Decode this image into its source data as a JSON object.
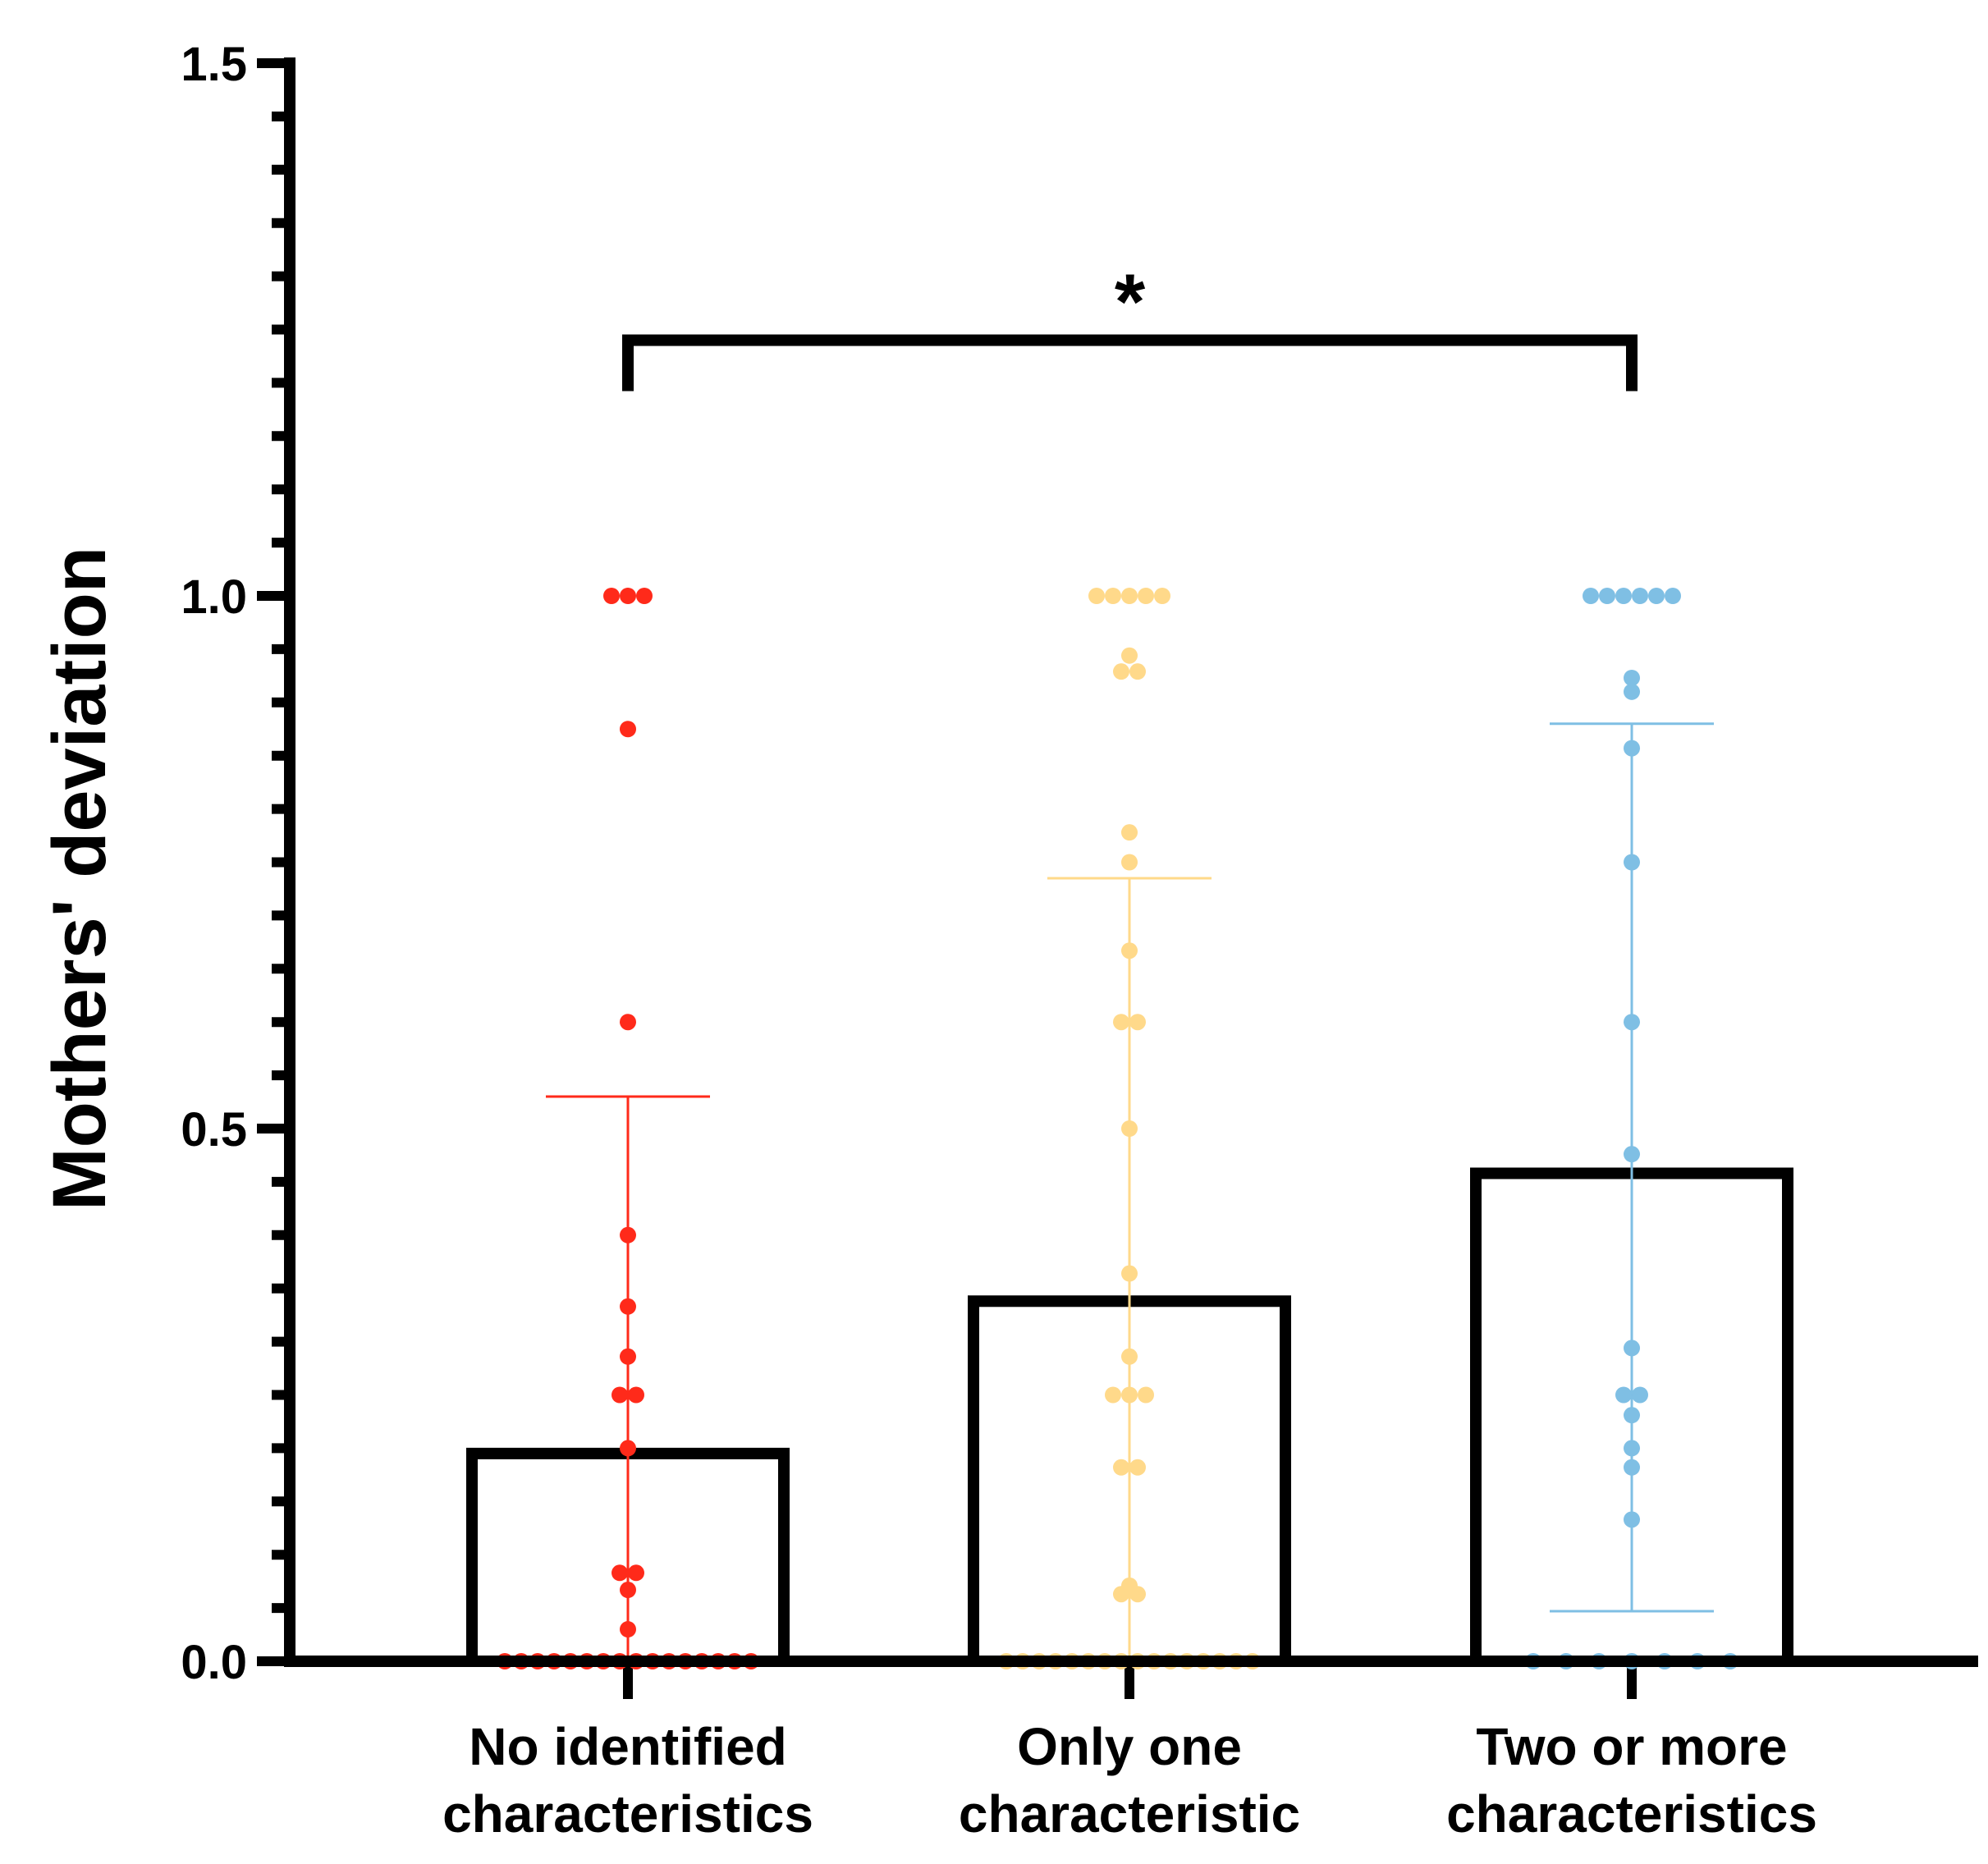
{
  "chart_data": {
    "type": "bar",
    "title": "",
    "xlabel": "",
    "ylabel": "Mothers' deviation",
    "ylim": [
      0,
      1.5
    ],
    "yticks": [
      {
        "value": 0.0,
        "label": "0.0"
      },
      {
        "value": 0.5,
        "label": "0.5"
      },
      {
        "value": 1.0,
        "label": "1.0"
      },
      {
        "value": 1.5,
        "label": "1.5"
      }
    ],
    "minor_tick_step": 0.05,
    "categories": [
      {
        "line1": "No identified",
        "line2": "characteristics"
      },
      {
        "line1": "Only one",
        "line2": "characteristic"
      },
      {
        "line1": "Two or more",
        "line2": "characteristics"
      }
    ],
    "series": [
      {
        "name": "No identified characteristics",
        "color": "#ff2a1a",
        "mean": 0.195,
        "sd_upper": 0.53,
        "sd_lower": 0.0,
        "points": [
          {
            "y": 1.0,
            "n": 3
          },
          {
            "y": 0.875,
            "n": 1
          },
          {
            "y": 0.6,
            "n": 1
          },
          {
            "y": 0.4,
            "n": 1
          },
          {
            "y": 0.333,
            "n": 1
          },
          {
            "y": 0.286,
            "n": 1
          },
          {
            "y": 0.25,
            "n": 2
          },
          {
            "y": 0.2,
            "n": 1
          },
          {
            "y": 0.083,
            "n": 2
          },
          {
            "y": 0.067,
            "n": 1
          },
          {
            "y": 0.03,
            "n": 1
          },
          {
            "y": 0.0,
            "n": 16
          }
        ]
      },
      {
        "name": "Only one characteristic",
        "color": "#ffd98a",
        "mean": 0.338,
        "sd_upper": 0.735,
        "sd_lower": 0.0,
        "points": [
          {
            "y": 1.0,
            "n": 5
          },
          {
            "y": 0.944,
            "n": 1
          },
          {
            "y": 0.929,
            "n": 2
          },
          {
            "y": 0.778,
            "n": 1
          },
          {
            "y": 0.75,
            "n": 1
          },
          {
            "y": 0.667,
            "n": 1
          },
          {
            "y": 0.6,
            "n": 2
          },
          {
            "y": 0.5,
            "n": 1
          },
          {
            "y": 0.364,
            "n": 1
          },
          {
            "y": 0.286,
            "n": 1
          },
          {
            "y": 0.25,
            "n": 3
          },
          {
            "y": 0.182,
            "n": 2
          },
          {
            "y": 0.071,
            "n": 1
          },
          {
            "y": 0.063,
            "n": 2
          },
          {
            "y": 0.0,
            "n": 16
          }
        ]
      },
      {
        "name": "Two or more characteristics",
        "color": "#7fbfe4",
        "mean": 0.458,
        "sd_upper": 0.88,
        "sd_lower": 0.047,
        "points": [
          {
            "y": 1.0,
            "n": 6
          },
          {
            "y": 0.923,
            "n": 1
          },
          {
            "y": 0.91,
            "n": 1
          },
          {
            "y": 0.857,
            "n": 1
          },
          {
            "y": 0.75,
            "n": 1
          },
          {
            "y": 0.6,
            "n": 1
          },
          {
            "y": 0.476,
            "n": 1
          },
          {
            "y": 0.294,
            "n": 1
          },
          {
            "y": 0.25,
            "n": 2
          },
          {
            "y": 0.231,
            "n": 1
          },
          {
            "y": 0.2,
            "n": 1
          },
          {
            "y": 0.182,
            "n": 1
          },
          {
            "y": 0.133,
            "n": 1
          },
          {
            "y": 0.0,
            "n": 7
          }
        ]
      }
    ],
    "annotations": [
      {
        "text": "*",
        "type": "significance_bracket",
        "from_category": 0,
        "to_category": 2,
        "y": 1.24
      }
    ]
  }
}
